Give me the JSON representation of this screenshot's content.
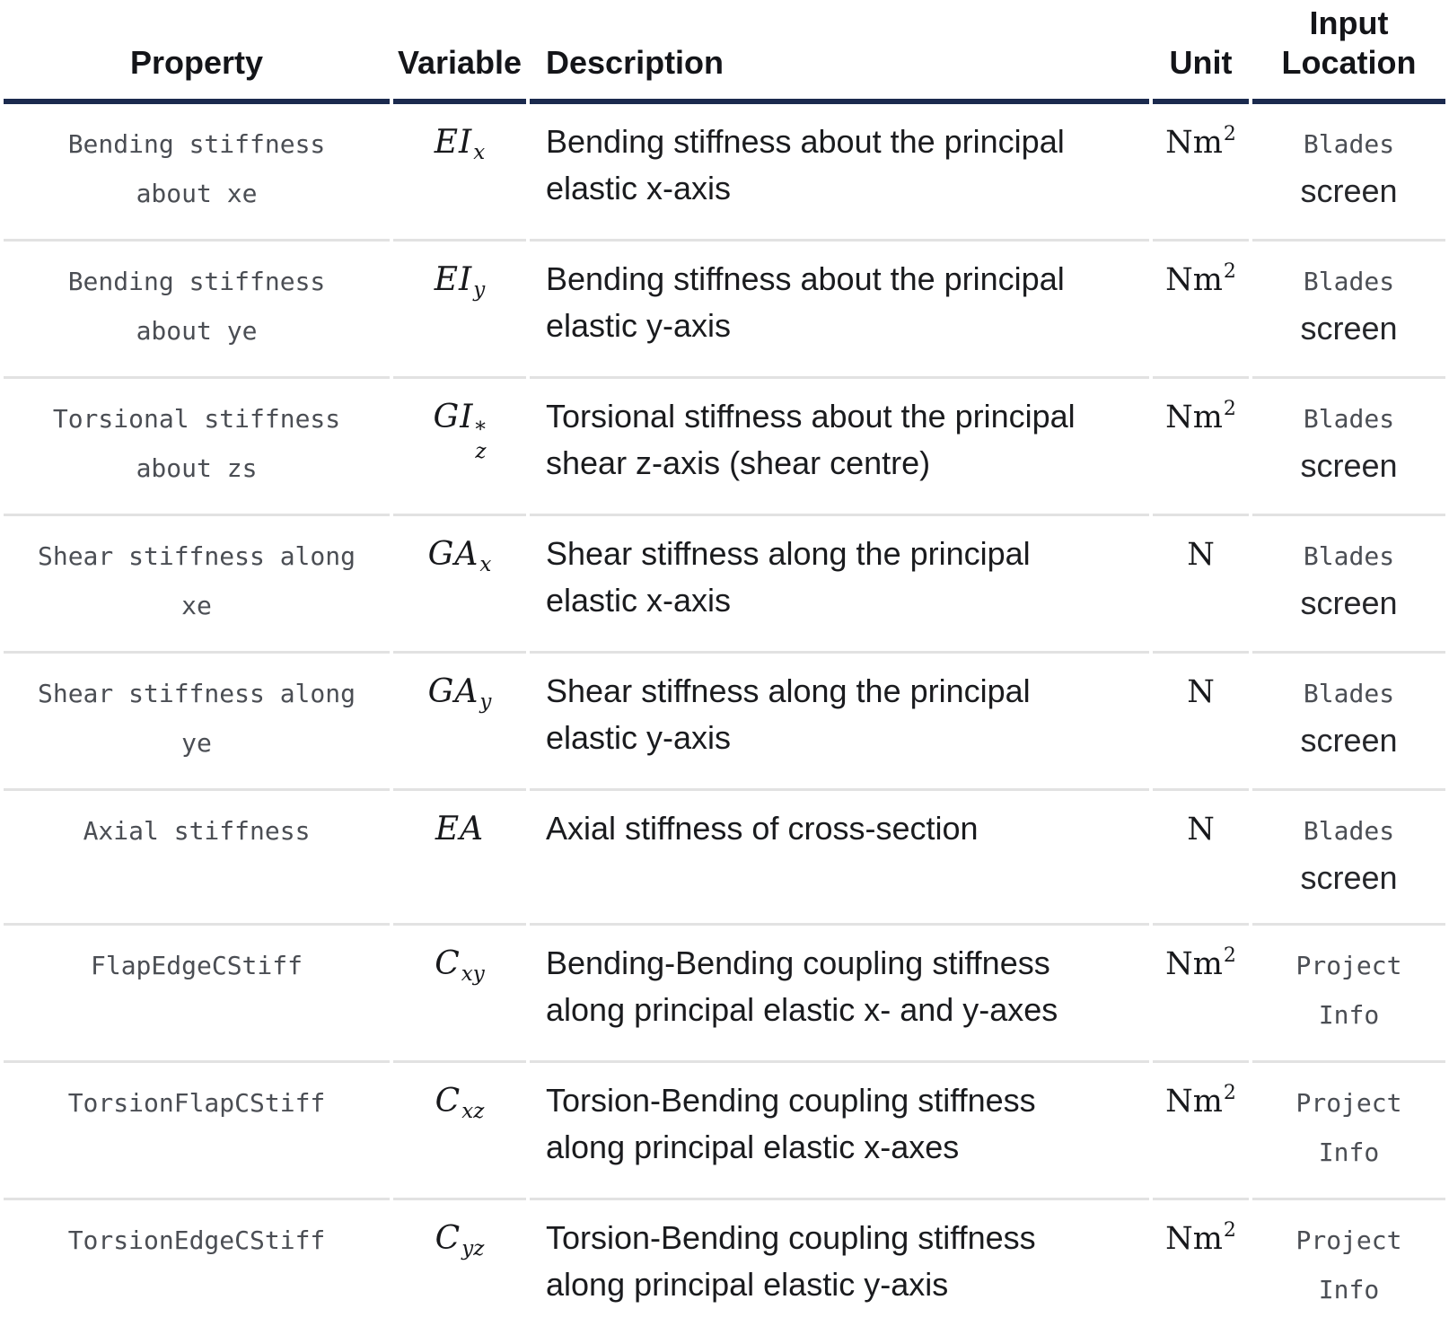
{
  "colors": {
    "header_rule": "#1b2a4e",
    "row_rule": "#e2e2e2",
    "code_text": "#4b4e54",
    "body_text": "#1a1b1e"
  },
  "table": {
    "columns": {
      "property": "Property",
      "variable": "Variable",
      "description": "Description",
      "unit": "Unit",
      "input_location": "Input Location"
    },
    "rows": [
      {
        "property": "Bending stiffness about xe",
        "variable": {
          "base": "EI",
          "sup": "",
          "sub": "x"
        },
        "description": "Bending stiffness about the principal elastic x-axis",
        "unit": {
          "base": "Nm",
          "sup": "2"
        },
        "input_location": {
          "code": "Blades",
          "text": "screen"
        }
      },
      {
        "property": "Bending stiffness about ye",
        "variable": {
          "base": "EI",
          "sup": "",
          "sub": "y"
        },
        "description": "Bending stiffness about the principal elastic y-axis",
        "unit": {
          "base": "Nm",
          "sup": "2"
        },
        "input_location": {
          "code": "Blades",
          "text": "screen"
        }
      },
      {
        "property": "Torsional stiffness about zs",
        "variable": {
          "base": "GI",
          "sup": "*",
          "sub": "z"
        },
        "description": "Torsional stiffness about the principal shear z-axis (shear centre)",
        "unit": {
          "base": "Nm",
          "sup": "2"
        },
        "input_location": {
          "code": "Blades",
          "text": "screen"
        }
      },
      {
        "property": "Shear stiffness along xe",
        "variable": {
          "base": "GA",
          "sup": "",
          "sub": "x"
        },
        "description": "Shear stiffness along the principal elastic x-axis",
        "unit": {
          "base": "N",
          "sup": ""
        },
        "input_location": {
          "code": "Blades",
          "text": "screen"
        }
      },
      {
        "property": "Shear stiffness along ye",
        "variable": {
          "base": "GA",
          "sup": "",
          "sub": "y"
        },
        "description": "Shear stiffness along the principal elastic y-axis",
        "unit": {
          "base": "N",
          "sup": ""
        },
        "input_location": {
          "code": "Blades",
          "text": "screen"
        }
      },
      {
        "property": "Axial stiffness",
        "variable": {
          "base": "EA",
          "sup": "",
          "sub": ""
        },
        "description": "Axial stiffness of cross-section",
        "unit": {
          "base": "N",
          "sup": ""
        },
        "input_location": {
          "code": "Blades",
          "text": "screen"
        }
      },
      {
        "property": "FlapEdgeCStiff",
        "variable": {
          "base": "C",
          "sup": "",
          "sub": "xy"
        },
        "description": "Bending-Bending coupling stiffness along principal elastic x- and y-axes",
        "unit": {
          "base": "Nm",
          "sup": "2"
        },
        "input_location": {
          "code": "Project Info",
          "text": ""
        }
      },
      {
        "property": "TorsionFlapCStiff",
        "variable": {
          "base": "C",
          "sup": "",
          "sub": "xz"
        },
        "description": "Torsion-Bending coupling stiffness along principal elastic x-axes",
        "unit": {
          "base": "Nm",
          "sup": "2"
        },
        "input_location": {
          "code": "Project Info",
          "text": ""
        }
      },
      {
        "property": "TorsionEdgeCStiff",
        "variable": {
          "base": "C",
          "sup": "",
          "sub": "yz"
        },
        "description": "Torsion-Bending coupling stiffness along principal elastic y-axis",
        "unit": {
          "base": "Nm",
          "sup": "2"
        },
        "input_location": {
          "code": "Project Info",
          "text": ""
        }
      }
    ]
  }
}
